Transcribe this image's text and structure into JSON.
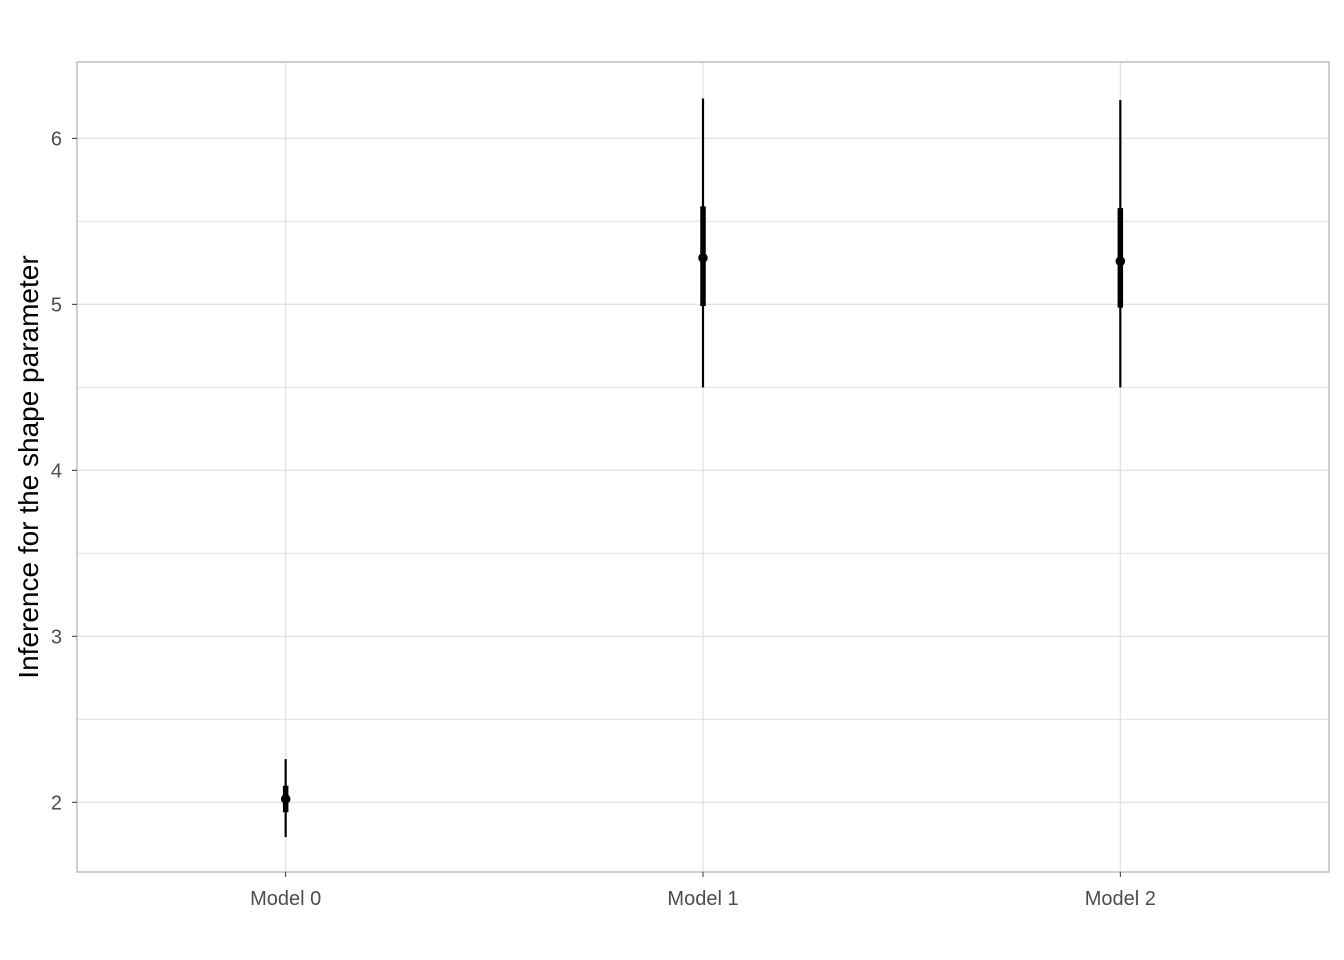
{
  "chart_data": {
    "type": "pointrange",
    "categories": [
      "Model 0",
      "Model 1",
      "Model 2"
    ],
    "estimates": [
      2.02,
      5.28,
      5.26
    ],
    "inner_interval": [
      [
        1.94,
        2.1
      ],
      [
        4.99,
        5.59
      ],
      [
        4.98,
        5.58
      ]
    ],
    "outer_interval": [
      [
        1.79,
        2.26
      ],
      [
        4.5,
        6.24
      ],
      [
        4.5,
        6.23
      ]
    ],
    "xlabel": "",
    "ylabel": "Inference for the shape parameter",
    "ylim": [
      1.58,
      6.46
    ],
    "yticks": [
      2,
      3,
      4,
      5,
      6
    ],
    "yticks_minor": [
      2.5,
      3.5,
      4.5,
      5.5
    ],
    "ytick_labels": [
      "2",
      "3",
      "4",
      "5",
      "6"
    ],
    "grid": true,
    "colors": {
      "point": "#000000",
      "grid": "#dedede",
      "panel_border": "#b3b3b3",
      "tick_text": "#4d4d4d"
    }
  }
}
